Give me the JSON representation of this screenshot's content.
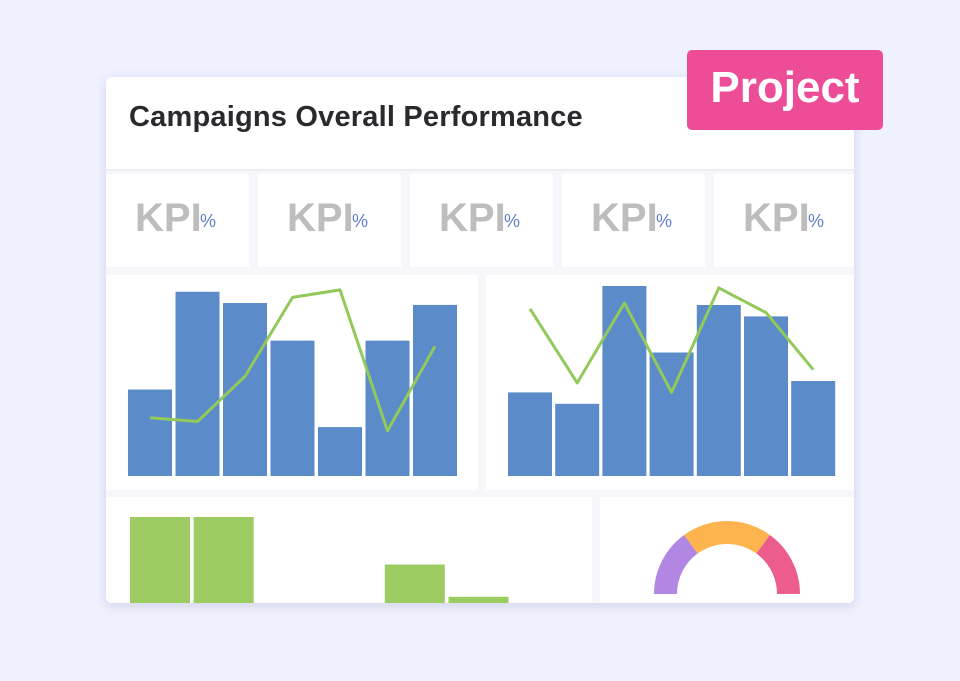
{
  "badge": {
    "label": "Project"
  },
  "card": {
    "title": "Campaigns Overall Performance"
  },
  "kpis": [
    {
      "label": "KPI",
      "unit": "%"
    },
    {
      "label": "KPI",
      "unit": "%"
    },
    {
      "label": "KPI",
      "unit": "%"
    },
    {
      "label": "KPI",
      "unit": "%"
    },
    {
      "label": "KPI",
      "unit": "%"
    }
  ],
  "colors": {
    "bar_blue": "#5b8bc9",
    "line_green": "#92c95a",
    "bar_green": "#9bcb61",
    "badge_pink": "#ec4d96",
    "donut": [
      "#b287e3",
      "#fdb44f",
      "#ec5d8e"
    ]
  },
  "chart_data": [
    {
      "type": "bar",
      "ylim": [
        0,
        100
      ],
      "series": [
        {
          "kind": "bar",
          "values": [
            46,
            98,
            92,
            72,
            26,
            72,
            91
          ]
        },
        {
          "kind": "line",
          "values": [
            31,
            29,
            53,
            95,
            99,
            24,
            69
          ]
        }
      ]
    },
    {
      "type": "bar",
      "ylim": [
        0,
        100
      ],
      "series": [
        {
          "kind": "bar",
          "values": [
            44,
            38,
            100,
            65,
            90,
            84,
            50
          ]
        },
        {
          "kind": "line",
          "values": [
            88,
            49,
            91,
            44,
            99,
            86,
            56
          ]
        }
      ]
    },
    {
      "type": "bar",
      "ylim": [
        0,
        100
      ],
      "series": [
        {
          "kind": "bar",
          "values": [
            100,
            100,
            null,
            51,
            75,
            58
          ]
        }
      ]
    },
    {
      "type": "pie",
      "slices": [
        {
          "value": 30
        },
        {
          "value": 40
        },
        {
          "value": 30
        }
      ]
    }
  ]
}
